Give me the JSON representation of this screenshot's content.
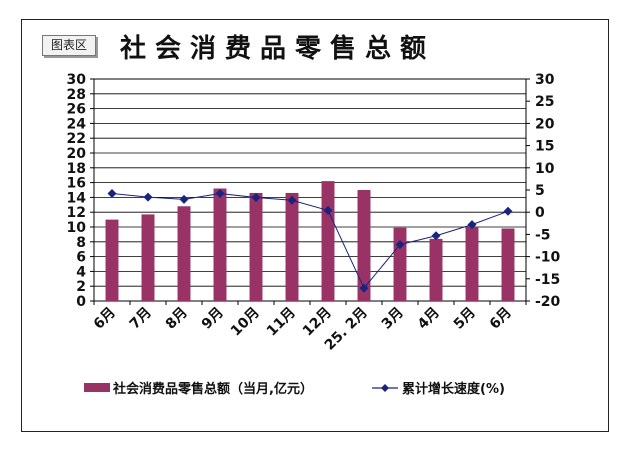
{
  "chip_label": "图表区",
  "chart_data": {
    "type": "bar",
    "title": "社会消费品零售总额",
    "categories": [
      "6月",
      "7月",
      "8月",
      "9月",
      "10月",
      "11月",
      "12月",
      "25. 2月",
      "3月",
      "4月",
      "5月",
      "6月"
    ],
    "series": [
      {
        "name": "社会消费品零售总额（当月,亿元）",
        "type": "bar",
        "axis": "left",
        "color": "#993366",
        "values": [
          11.0,
          11.7,
          12.8,
          15.2,
          14.6,
          14.6,
          16.2,
          15.0,
          9.9,
          8.4,
          10.0,
          9.8
        ]
      },
      {
        "name": "累计增长速度(%)",
        "type": "line",
        "axis": "right",
        "color": "#1a237e",
        "values": [
          4.2,
          3.4,
          2.9,
          4.2,
          3.3,
          2.7,
          0.4,
          -17.1,
          -7.3,
          -5.3,
          -2.8,
          0.2
        ]
      }
    ],
    "y_left": {
      "min": 0,
      "max": 30,
      "step": 2
    },
    "y_right": {
      "min": -20,
      "max": 30,
      "step": 5
    },
    "legend_position": "bottom",
    "grid": true
  }
}
